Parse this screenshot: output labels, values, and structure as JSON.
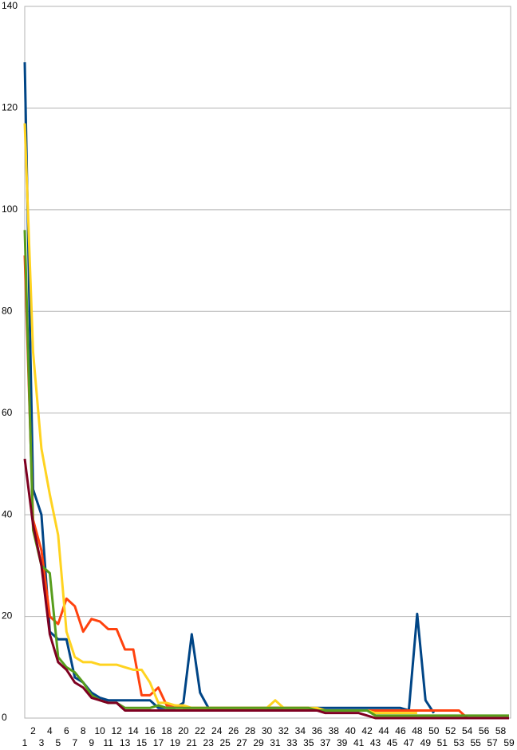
{
  "chart_data": {
    "type": "line",
    "categories": [
      1,
      2,
      3,
      4,
      5,
      6,
      7,
      8,
      9,
      10,
      11,
      12,
      13,
      14,
      15,
      16,
      17,
      18,
      19,
      20,
      21,
      22,
      23,
      24,
      25,
      26,
      27,
      28,
      29,
      30,
      31,
      32,
      33,
      34,
      35,
      36,
      37,
      38,
      39,
      40,
      41,
      42,
      43,
      44,
      45,
      46,
      47,
      48,
      49,
      50,
      51,
      52,
      53,
      54,
      55,
      56,
      57,
      58,
      59
    ],
    "ylim": [
      0,
      140
    ],
    "yticks": [
      0,
      20,
      40,
      60,
      80,
      100,
      120,
      140
    ],
    "grid": true,
    "series": [
      {
        "color": "#004586",
        "values": [
          129,
          45,
          40,
          17,
          15.5,
          15.5,
          8,
          7,
          5,
          4,
          3.5,
          3.5,
          3.5,
          3.5,
          3.5,
          3.5,
          2,
          2,
          2,
          3,
          16.5,
          5,
          2,
          2,
          2,
          2,
          2,
          2,
          2,
          2,
          2,
          2,
          2,
          2,
          2,
          2,
          2,
          2,
          2,
          2,
          2,
          2,
          2,
          2,
          2,
          2,
          1.5,
          20.5,
          3.5,
          1,
          null,
          null,
          null,
          null,
          null,
          null,
          null,
          null,
          null
        ]
      },
      {
        "color": "#ff420e",
        "values": [
          91,
          39,
          33,
          20,
          18.5,
          23.5,
          22,
          17,
          19.5,
          19,
          17.5,
          17.5,
          13.5,
          13.5,
          4.5,
          4.5,
          6,
          2.5,
          2.5,
          2,
          2,
          2,
          2,
          2,
          2,
          2,
          2,
          2,
          2,
          2,
          2,
          2,
          2,
          2,
          2,
          1.5,
          1.5,
          1.5,
          1.5,
          1.5,
          1.5,
          1.5,
          1.5,
          1.5,
          1.5,
          1.5,
          1.5,
          1.5,
          1.5,
          1.5,
          1.5,
          1.5,
          1.5,
          0,
          null,
          null,
          null,
          null,
          null
        ]
      },
      {
        "color": "#ffd320",
        "values": [
          117,
          72,
          53,
          44,
          36,
          17,
          12,
          11,
          11,
          10.5,
          10.5,
          10.5,
          10,
          9.5,
          9.5,
          7,
          3,
          3,
          2.5,
          2.5,
          2,
          2,
          2,
          2,
          2,
          2,
          2,
          2,
          2,
          2,
          3.5,
          2,
          2,
          2,
          2,
          2,
          1.5,
          1.5,
          1.5,
          1.5,
          1.5,
          1.5,
          1,
          1,
          1,
          1,
          1,
          1,
          null,
          null,
          null,
          null,
          null,
          null,
          null,
          null,
          null,
          null,
          null
        ]
      },
      {
        "color": "#579d1c",
        "values": [
          96,
          37,
          30,
          28.5,
          12,
          10,
          9,
          7,
          4.5,
          3.5,
          3,
          3,
          2,
          2,
          2,
          2,
          2.5,
          2,
          2,
          2,
          2,
          2,
          2,
          2,
          2,
          2,
          2,
          2,
          2,
          2,
          2,
          2,
          2,
          2,
          2,
          1.5,
          1.5,
          1.5,
          1.5,
          1.5,
          1.5,
          1.5,
          0.5,
          0.5,
          0.5,
          0.5,
          0.5,
          0.5,
          0.5,
          0.5,
          0.5,
          0.5,
          0.5,
          0.5,
          0.5,
          0.5,
          0.5,
          0.5,
          0.5
        ]
      },
      {
        "color": "#7e0021",
        "values": [
          51,
          38,
          30,
          16.5,
          11,
          9.5,
          7,
          6,
          4,
          3.5,
          3,
          3,
          1.5,
          1.5,
          1.5,
          1.5,
          1.5,
          1.5,
          1.5,
          1.5,
          1.5,
          1.5,
          1.5,
          1.5,
          1.5,
          1.5,
          1.5,
          1.5,
          1.5,
          1.5,
          1.5,
          1.5,
          1.5,
          1.5,
          1.5,
          1.5,
          1,
          1,
          1,
          1,
          1,
          0.5,
          0,
          0,
          0,
          0,
          0,
          0,
          0,
          0,
          0,
          0,
          0,
          0,
          0,
          0,
          0,
          0,
          0
        ]
      }
    ]
  }
}
